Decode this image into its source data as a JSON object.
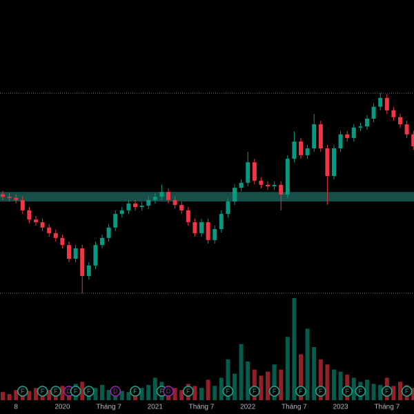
{
  "chart_data": {
    "type": "candlestick",
    "categories": [
      null,
      null,
      "8",
      null,
      null,
      null,
      null,
      null,
      null,
      "2020",
      null,
      null,
      null,
      null,
      null,
      null,
      "Tháng 7",
      null,
      null,
      null,
      null,
      null,
      null,
      "2021",
      null,
      null,
      null,
      null,
      null,
      null,
      "Tháng 7",
      null,
      null,
      null,
      null,
      null,
      null,
      "2022",
      null,
      null,
      null,
      null,
      null,
      null,
      "Tháng 7",
      null,
      null,
      null,
      null,
      null,
      null,
      "2023",
      null,
      null,
      null,
      null,
      null,
      null,
      "Tháng 7",
      null,
      null,
      null,
      null
    ],
    "open": [
      34.5,
      33.7,
      33.3,
      32.6,
      29.1,
      26.0,
      25.1,
      23.3,
      21.4,
      19.8,
      17.4,
      12.8,
      16.3,
      7.0,
      10.5,
      17.4,
      19.8,
      23.3,
      27.9,
      29.1,
      31.4,
      30.2,
      30.7,
      32.6,
      33.7,
      35.3,
      32.6,
      30.9,
      29.1,
      25.1,
      21.4,
      25.1,
      19.1,
      22.8,
      27.9,
      32.1,
      36.7,
      38.4,
      45.3,
      39.1,
      37.7,
      37.2,
      37.7,
      34.4,
      46.5,
      52.3,
      47.7,
      50.0,
      58.1,
      50.0,
      40.7,
      50.0,
      54.7,
      53.5,
      57.0,
      57.4,
      60.0,
      64.0,
      67.0,
      62.8,
      60.5,
      58.1,
      54.7
    ],
    "high": [
      35.7,
      34.9,
      34.5,
      33.8,
      30.3,
      27.2,
      26.3,
      24.5,
      22.6,
      21.0,
      18.6,
      17.5,
      17.5,
      11.7,
      18.6,
      21.0,
      24.5,
      29.1,
      30.3,
      32.6,
      32.6,
      31.9,
      33.8,
      34.9,
      37.8,
      36.5,
      33.8,
      32.1,
      30.3,
      26.3,
      26.3,
      26.3,
      24.0,
      29.1,
      33.3,
      37.9,
      39.6,
      48.8,
      46.5,
      40.3,
      38.9,
      38.9,
      38.9,
      47.7,
      55.8,
      53.5,
      51.2,
      61.6,
      59.3,
      51.2,
      51.2,
      55.9,
      55.9,
      58.2,
      58.6,
      61.2,
      65.2,
      68.6,
      68.2,
      64.0,
      61.7,
      59.3,
      55.9
    ],
    "low": [
      32.5,
      32.1,
      31.4,
      27.9,
      24.8,
      23.9,
      22.1,
      20.2,
      18.6,
      16.2,
      11.6,
      11.6,
      1.2,
      5.8,
      9.3,
      16.2,
      18.6,
      22.1,
      26.7,
      27.9,
      29.0,
      29.0,
      29.5,
      31.4,
      32.5,
      31.4,
      29.7,
      27.9,
      23.9,
      20.2,
      20.2,
      17.9,
      17.9,
      21.6,
      26.7,
      30.9,
      35.5,
      37.2,
      37.9,
      36.5,
      36.0,
      36.0,
      29.1,
      33.2,
      45.3,
      46.5,
      46.5,
      48.8,
      48.8,
      31.0,
      39.5,
      48.8,
      52.3,
      52.3,
      55.8,
      56.2,
      58.8,
      62.8,
      61.6,
      59.3,
      56.9,
      53.5,
      49.5
    ],
    "close": [
      33.7,
      33.3,
      32.6,
      29.1,
      26.0,
      25.1,
      23.3,
      21.4,
      19.8,
      17.4,
      12.8,
      16.3,
      7.0,
      10.5,
      17.4,
      19.8,
      23.3,
      27.9,
      29.1,
      31.4,
      30.2,
      30.7,
      32.6,
      33.7,
      35.3,
      32.6,
      30.9,
      29.1,
      25.1,
      21.4,
      25.1,
      19.1,
      22.8,
      27.9,
      32.1,
      36.7,
      38.4,
      45.3,
      39.1,
      37.7,
      37.2,
      37.7,
      34.4,
      46.5,
      52.3,
      47.7,
      50.0,
      58.1,
      50.0,
      40.7,
      50.0,
      54.7,
      53.5,
      57.0,
      57.4,
      60.0,
      64.0,
      67.0,
      62.8,
      60.5,
      58.1,
      54.7,
      50.7
    ],
    "volume": [
      8,
      6,
      10,
      7,
      9,
      12,
      8,
      10,
      9,
      14,
      12,
      16,
      18,
      10,
      12,
      15,
      10,
      12,
      9,
      8,
      10,
      12,
      15,
      22,
      18,
      14,
      12,
      10,
      16,
      14,
      12,
      20,
      14,
      22,
      40,
      26,
      55,
      38,
      30,
      24,
      28,
      35,
      30,
      62,
      100,
      45,
      70,
      52,
      40,
      35,
      30,
      28,
      25,
      22,
      18,
      20,
      16,
      15,
      22,
      14,
      18,
      15,
      12
    ],
    "ylim": [
      0,
      100
    ],
    "volume_ylim": [
      0,
      100
    ],
    "up_color": "#089981",
    "down_color": "#f23645",
    "zone": [
      32.1,
      35.3
    ],
    "zone_color": "#1a5c55",
    "levels": [
      68.6,
      1.2
    ],
    "events": [
      {
        "label": "F",
        "index": 3
      },
      {
        "label": "F",
        "index": 6
      },
      {
        "label": "F",
        "index": 8
      },
      {
        "label": "D",
        "index": 10
      },
      {
        "label": "F",
        "index": 11
      },
      {
        "label": "F",
        "index": 13
      },
      {
        "label": "D",
        "index": 17
      },
      {
        "label": "F",
        "index": 20
      },
      {
        "label": "F",
        "index": 24
      },
      {
        "label": "D",
        "index": 25
      },
      {
        "label": "F",
        "index": 28
      },
      {
        "label": "F",
        "index": 34
      },
      {
        "label": "F",
        "index": 38
      },
      {
        "label": "F",
        "index": 41
      },
      {
        "label": "F",
        "index": 45
      },
      {
        "label": "F",
        "index": 48
      },
      {
        "label": "F",
        "index": 52
      },
      {
        "label": "F",
        "index": 54
      },
      {
        "label": "F",
        "index": 58
      },
      {
        "label": "F",
        "index": 61
      }
    ]
  }
}
